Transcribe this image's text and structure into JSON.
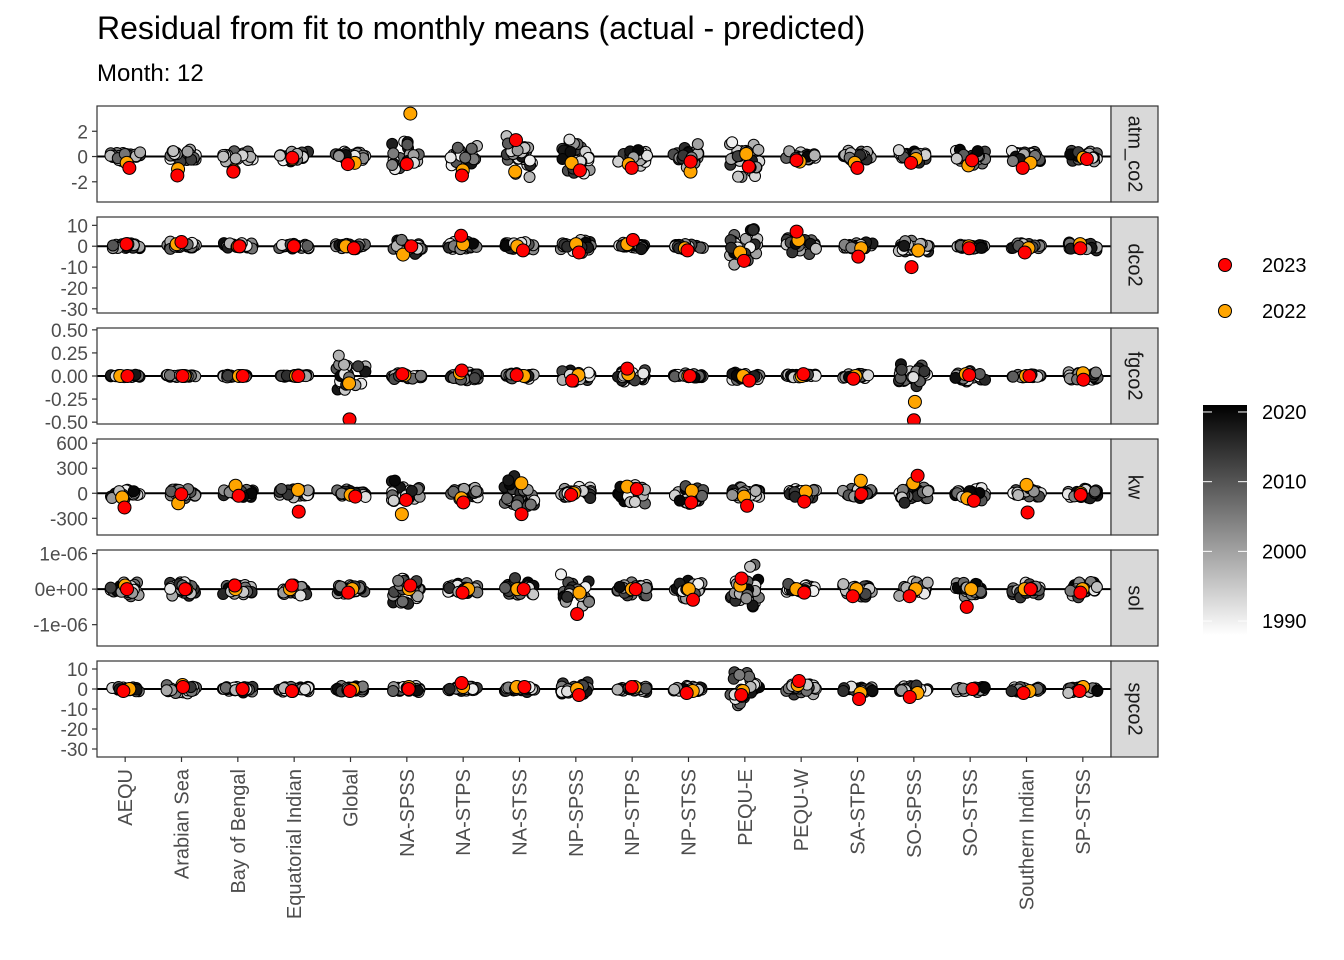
{
  "chart_data": {
    "type": "scatter",
    "title": "Residual from fit to monthly means (actual - predicted)",
    "subtitle": "Month: 12",
    "xlabel": "",
    "ylabel": "",
    "categories": [
      "AEQU",
      "Arabian Sea",
      "Bay of Bengal",
      "Equatorial Indian",
      "Global",
      "NA-SPSS",
      "NA-STPS",
      "NA-STSS",
      "NP-SPSS",
      "NP-STPS",
      "NP-STSS",
      "PEQU-E",
      "PEQU-W",
      "SA-STPS",
      "SO-SPSS",
      "SO-STSS",
      "Southern Indian",
      "SP-STSS"
    ],
    "grid": false,
    "legend_position": "right",
    "legend": {
      "highlight": [
        {
          "label": "2023",
          "color": "#ff0000"
        },
        {
          "label": "2022",
          "color": "#ffa500"
        }
      ],
      "colorbar": {
        "ticks": [
          "2020",
          "2010",
          "2000",
          "1990"
        ],
        "range": [
          1988,
          2021
        ],
        "low_color": "#ffffff",
        "high_color": "#000000"
      }
    },
    "panels": [
      {
        "label": "atm_co2",
        "ylim": [
          -3.6,
          4.0
        ],
        "yticks": [
          -2,
          0,
          2
        ],
        "yticklabels": [
          "-2",
          "0",
          "2"
        ],
        "spread": [
          0.6,
          0.7,
          0.6,
          0.6,
          0.5,
          1.8,
          1.0,
          2.3,
          2.3,
          0.8,
          1.2,
          2.2,
          0.5,
          0.6,
          0.7,
          0.9,
          0.7,
          0.7
        ],
        "values_2023": [
          -0.9,
          -1.5,
          -1.2,
          -0.1,
          -0.6,
          -0.6,
          -1.5,
          1.3,
          -1.1,
          -0.9,
          -0.4,
          -0.8,
          -0.3,
          -0.9,
          -0.5,
          -0.3,
          -0.9,
          -0.2
        ],
        "values_2022": [
          -0.5,
          -1.0,
          -1.1,
          -0.2,
          -0.5,
          3.4,
          -1.1,
          -1.2,
          -0.5,
          -0.6,
          -1.2,
          0.2,
          -0.4,
          -0.5,
          -0.2,
          -0.7,
          -0.5,
          -0.1
        ]
      },
      {
        "label": "dco2",
        "ylim": [
          -32,
          14
        ],
        "yticks": [
          -30,
          -20,
          -10,
          0,
          10
        ],
        "yticklabels": [
          "-30",
          "-20",
          "-10",
          "0",
          "10"
        ],
        "spread": [
          2,
          3,
          2,
          2,
          2,
          5,
          3,
          3,
          4,
          2,
          2,
          12,
          5,
          3,
          4,
          2,
          2,
          3
        ],
        "values_2023": [
          1,
          2,
          0,
          0,
          -1,
          0,
          5,
          -2,
          -3,
          3,
          -2,
          -7,
          7,
          -5,
          -10,
          -1,
          -3,
          -1
        ],
        "values_2022": [
          1,
          1,
          0,
          0,
          0,
          -4,
          1,
          0,
          1,
          1,
          -1,
          -3,
          3,
          -1,
          -2,
          0,
          -1,
          1
        ]
      },
      {
        "label": "fgco2",
        "ylim": [
          -0.52,
          0.52
        ],
        "yticks": [
          -0.5,
          -0.25,
          0,
          0.25,
          0.5
        ],
        "yticklabels": [
          "-0.50",
          "-0.25",
          "0.00",
          "0.25",
          "0.50"
        ],
        "spread": [
          0.02,
          0.02,
          0.02,
          0.02,
          0.3,
          0.05,
          0.06,
          0.04,
          0.08,
          0.08,
          0.04,
          0.07,
          0.03,
          0.04,
          0.15,
          0.09,
          0.03,
          0.08
        ],
        "values_2023": [
          0,
          0,
          0,
          0,
          -0.47,
          0.02,
          0.06,
          0.01,
          -0.05,
          0.08,
          0,
          -0.05,
          0.02,
          -0.03,
          -0.48,
          0.01,
          0,
          -0.04
        ],
        "values_2022": [
          0,
          0,
          0,
          0,
          -0.08,
          0.01,
          0.03,
          0,
          0.01,
          0.02,
          0,
          0,
          0,
          0,
          -0.28,
          0.02,
          0,
          0.03
        ]
      },
      {
        "label": "kw",
        "ylim": [
          -500,
          650
        ],
        "yticks": [
          -300,
          0,
          300,
          600
        ],
        "yticklabels": [
          "-300",
          "0",
          "300",
          "600"
        ],
        "spread": [
          70,
          120,
          90,
          90,
          60,
          230,
          110,
          320,
          120,
          160,
          180,
          100,
          90,
          90,
          140,
          110,
          100,
          90
        ],
        "values_2023": [
          -170,
          -10,
          -30,
          -220,
          -40,
          -80,
          -110,
          -250,
          -20,
          50,
          -110,
          -150,
          -100,
          -10,
          210,
          -90,
          -230,
          -20
        ],
        "values_2022": [
          -50,
          -120,
          90,
          40,
          -20,
          -250,
          -60,
          120,
          0,
          80,
          30,
          -40,
          20,
          150,
          120,
          -60,
          100,
          0
        ]
      },
      {
        "label": "sol",
        "ylim": [
          -1.6e-06,
          1.1e-06
        ],
        "yticks": [
          -1e-06,
          0,
          1e-06
        ],
        "yticklabels": [
          "-1e-06",
          "0e+00",
          "1e-06"
        ],
        "spread": [
          3e-07,
          3e-07,
          3e-07,
          3e-07,
          2e-07,
          6e-07,
          2e-07,
          4e-07,
          6e-07,
          3e-07,
          4e-07,
          9e-07,
          2e-07,
          3e-07,
          3e-07,
          3e-07,
          3e-07,
          3e-07
        ],
        "values_2023": [
          0,
          0,
          1e-07,
          1e-07,
          -1e-07,
          1e-07,
          -1e-07,
          0,
          -7e-07,
          0,
          -3e-07,
          3e-07,
          -1e-07,
          -2e-07,
          -2e-07,
          -5e-07,
          0,
          -1e-07
        ],
        "values_2022": [
          1e-07,
          0,
          0,
          0,
          0,
          0,
          0,
          0,
          -1e-07,
          0,
          0,
          1e-07,
          0,
          0,
          0,
          0,
          0,
          0
        ]
      },
      {
        "label": "spco2",
        "ylim": [
          -34,
          14
        ],
        "yticks": [
          -30,
          -20,
          -10,
          0,
          10
        ],
        "yticklabels": [
          "-30",
          "-20",
          "-10",
          "0",
          "10"
        ],
        "spread": [
          2,
          3,
          2,
          2,
          2,
          2,
          2,
          2,
          4,
          2,
          2,
          12,
          4,
          3,
          2,
          2,
          2,
          3
        ],
        "values_2023": [
          -1,
          1,
          0,
          -1,
          -1,
          0,
          3,
          1,
          -3,
          1,
          -2,
          -3,
          4,
          -5,
          -4,
          0,
          -2,
          -1
        ],
        "values_2022": [
          0,
          2,
          0,
          -1,
          0,
          1,
          1,
          1,
          0,
          1,
          -1,
          -1,
          2,
          -2,
          -2,
          0,
          -1,
          1
        ]
      }
    ]
  }
}
